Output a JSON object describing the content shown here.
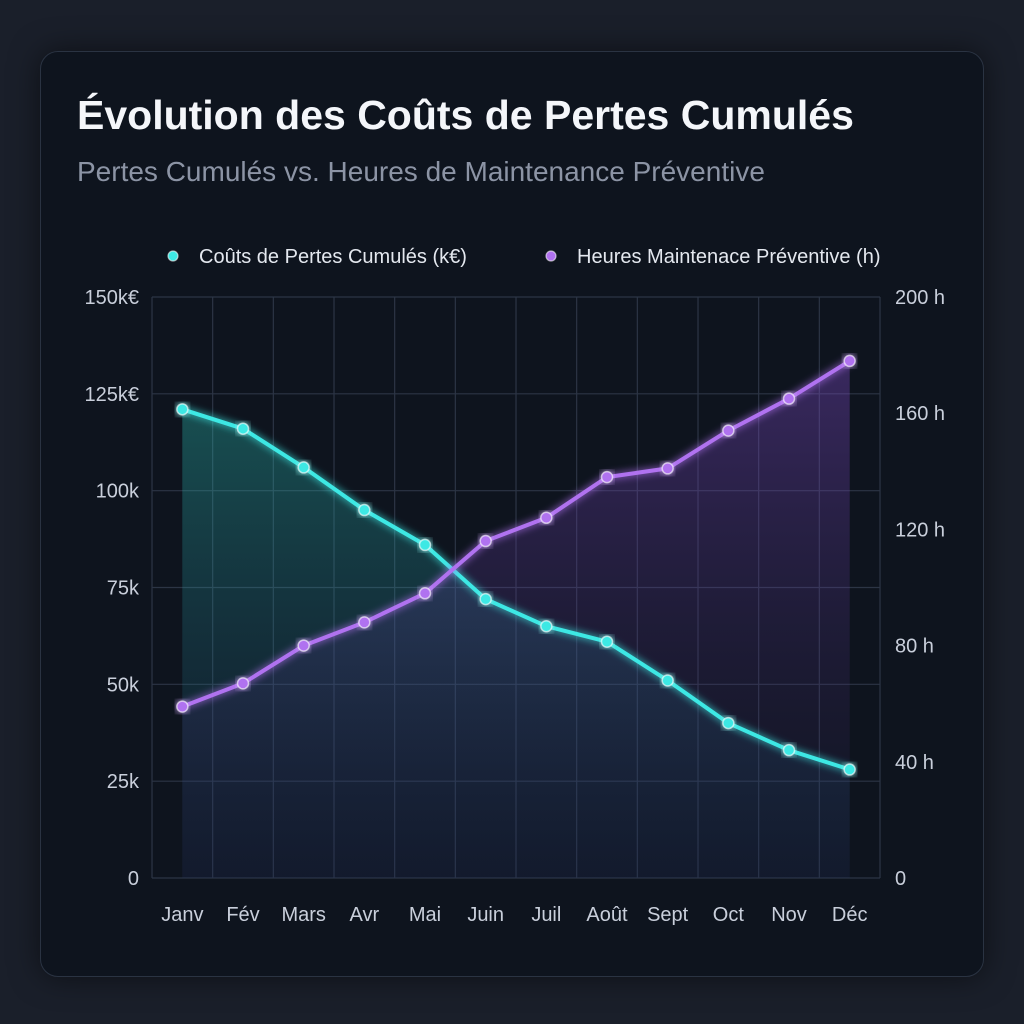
{
  "chart_data": {
    "type": "line",
    "title": "Évolution des Coûts de Pertes Cumulés",
    "subtitle": "Pertes Cumulés vs. Heures de Maintenance Préventive",
    "categories": [
      "Janv",
      "Fév",
      "Mars",
      "Avr",
      "Mai",
      "Juin",
      "Juil",
      "Août",
      "Sept",
      "Oct",
      "Nov",
      "Déc"
    ],
    "series": [
      {
        "name": "Coûts de Pertes Cumulés (k€)",
        "axis": "left",
        "color": "#3ee8e4",
        "values": [
          121,
          116,
          106,
          95,
          86,
          72,
          65,
          61,
          51,
          40,
          33,
          28
        ]
      },
      {
        "name": "Heures Maintenace Préventive (h)",
        "axis": "right",
        "color": "#b072f0",
        "values": [
          59,
          67,
          80,
          88,
          98,
          116,
          124,
          138,
          141,
          154,
          165,
          178
        ]
      }
    ],
    "y_left": {
      "min": 0,
      "max": 150,
      "ticks": [
        0,
        25,
        50,
        75,
        100,
        125,
        150
      ],
      "tick_labels": [
        "0",
        "25k",
        "50k",
        "75k",
        "100k",
        "125k€",
        "150k€"
      ]
    },
    "y_right": {
      "min": 0,
      "max": 200,
      "ticks": [
        0,
        40,
        80,
        120,
        160,
        200
      ],
      "tick_labels": [
        "0",
        "40 h",
        "80 h",
        "120 h",
        "160 h",
        "200 h"
      ]
    },
    "grid": true,
    "legend_position": "top"
  }
}
